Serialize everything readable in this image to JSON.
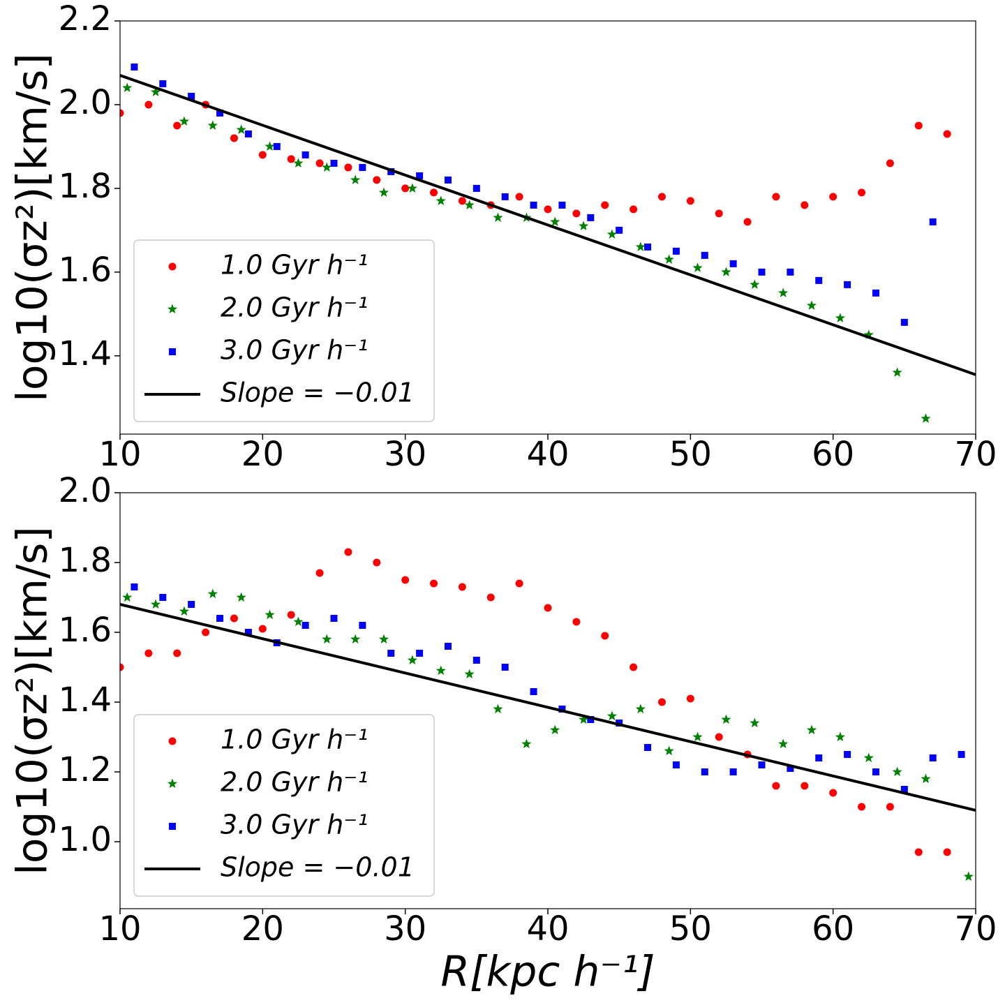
{
  "chart_data": [
    {
      "type": "scatter",
      "ylabel": "log10(σz²)[km/s]",
      "xlim": [
        10,
        70
      ],
      "xticks": [
        10,
        20,
        30,
        40,
        50,
        60,
        70
      ],
      "ylim": [
        1.213,
        2.2
      ],
      "yticks": [
        1.4,
        1.6,
        1.8,
        {
          "value": 2,
          "label": "2.0"
        },
        2.2
      ],
      "legend": "lower left",
      "series": [
        {
          "name": "1.0 Gyr h⁻¹",
          "color": "#ff0000",
          "marker": "o",
          "x": [
            10,
            12,
            14,
            16,
            18,
            20,
            22,
            24,
            26,
            28,
            30,
            32,
            34,
            36,
            38,
            40,
            42,
            44,
            46,
            48,
            50,
            52,
            54,
            56,
            58,
            60,
            62,
            64,
            66,
            68
          ],
          "values": [
            1.98,
            2.0,
            1.95,
            2.0,
            1.92,
            1.88,
            1.87,
            1.86,
            1.85,
            1.82,
            1.8,
            1.79,
            1.77,
            1.76,
            1.78,
            1.75,
            1.74,
            1.76,
            1.75,
            1.78,
            1.77,
            1.74,
            1.72,
            1.78,
            1.76,
            1.78,
            1.79,
            1.86,
            1.95,
            1.93
          ]
        },
        {
          "name": "2.0 Gyr h⁻¹",
          "color": "#008000",
          "marker": "*",
          "x": [
            10.5,
            12.5,
            14.5,
            16.5,
            18.5,
            20.5,
            22.5,
            24.5,
            26.5,
            28.5,
            30.5,
            32.5,
            34.5,
            36.5,
            38.5,
            40.5,
            42.5,
            44.5,
            46.5,
            48.5,
            50.5,
            52.5,
            54.5,
            56.5,
            58.5,
            60.5,
            62.5,
            64.5,
            66.5
          ],
          "values": [
            2.04,
            2.03,
            1.96,
            1.95,
            1.94,
            1.9,
            1.86,
            1.85,
            1.82,
            1.79,
            1.8,
            1.77,
            1.76,
            1.73,
            1.73,
            1.72,
            1.71,
            1.69,
            1.66,
            1.63,
            1.61,
            1.6,
            1.57,
            1.55,
            1.52,
            1.49,
            1.45,
            1.36,
            1.25
          ]
        },
        {
          "name": "3.0 Gyr h⁻¹",
          "color": "#0000ff",
          "marker": "s",
          "x": [
            11,
            13,
            15,
            17,
            19,
            21,
            23,
            25,
            27,
            29,
            31,
            33,
            35,
            37,
            39,
            41,
            43,
            45,
            47,
            49,
            51,
            53,
            55,
            57,
            59,
            61,
            63,
            65,
            67
          ],
          "values": [
            2.09,
            2.05,
            2.02,
            1.98,
            1.93,
            1.9,
            1.88,
            1.86,
            1.85,
            1.84,
            1.83,
            1.82,
            1.8,
            1.78,
            1.76,
            1.76,
            1.73,
            1.7,
            1.66,
            1.65,
            1.64,
            1.62,
            1.6,
            1.6,
            1.58,
            1.57,
            1.55,
            1.48,
            1.72
          ]
        },
        {
          "name": "Slope = −0.01",
          "color": "#000000",
          "marker": "line",
          "x": [
            10,
            70
          ],
          "values": [
            2.07,
            1.355
          ]
        }
      ]
    },
    {
      "type": "scatter",
      "ylabel": "log10(σz²)[km/s]",
      "xlabel": "R[kpc h⁻¹]",
      "xlim": [
        10,
        70
      ],
      "xticks": [
        10,
        20,
        30,
        40,
        50,
        60,
        70
      ],
      "ylim": [
        0.808,
        2.0
      ],
      "yticks": [
        {
          "value": 1,
          "label": "1.0"
        },
        1.2,
        1.4,
        1.6,
        1.8,
        {
          "value": 2,
          "label": "2.0"
        }
      ],
      "legend": "lower left",
      "series": [
        {
          "name": "1.0 Gyr h⁻¹",
          "color": "#ff0000",
          "marker": "o",
          "x": [
            10,
            12,
            14,
            16,
            18,
            20,
            22,
            24,
            26,
            28,
            30,
            32,
            34,
            36,
            38,
            40,
            42,
            44,
            46,
            48,
            50,
            52,
            54,
            56,
            58,
            60,
            62,
            64,
            66,
            68
          ],
          "values": [
            1.5,
            1.54,
            1.54,
            1.6,
            1.64,
            1.61,
            1.65,
            1.77,
            1.83,
            1.8,
            1.75,
            1.74,
            1.73,
            1.7,
            1.74,
            1.67,
            1.63,
            1.59,
            1.5,
            1.4,
            1.41,
            1.3,
            1.25,
            1.16,
            1.16,
            1.14,
            1.1,
            1.1,
            0.97,
            0.97
          ]
        },
        {
          "name": "2.0 Gyr h⁻¹",
          "color": "#008000",
          "marker": "*",
          "x": [
            10.5,
            12.5,
            14.5,
            16.5,
            18.5,
            20.5,
            22.5,
            24.5,
            26.5,
            28.5,
            30.5,
            32.5,
            34.5,
            36.5,
            38.5,
            40.5,
            42.5,
            44.5,
            46.5,
            48.5,
            50.5,
            52.5,
            54.5,
            56.5,
            58.5,
            60.5,
            62.5,
            64.5,
            66.5,
            69.5
          ],
          "values": [
            1.7,
            1.68,
            1.66,
            1.71,
            1.7,
            1.65,
            1.63,
            1.58,
            1.58,
            1.58,
            1.52,
            1.49,
            1.48,
            1.38,
            1.28,
            1.32,
            1.35,
            1.36,
            1.38,
            1.26,
            1.3,
            1.35,
            1.34,
            1.28,
            1.32,
            1.3,
            1.24,
            1.2,
            1.18,
            0.9
          ]
        },
        {
          "name": "3.0 Gyr h⁻¹",
          "color": "#0000ff",
          "marker": "s",
          "x": [
            11,
            13,
            15,
            17,
            19,
            21,
            23,
            25,
            27,
            29,
            31,
            33,
            35,
            37,
            39,
            41,
            43,
            45,
            47,
            49,
            51,
            53,
            55,
            57,
            59,
            61,
            63,
            65,
            67,
            69
          ],
          "values": [
            1.73,
            1.7,
            1.68,
            1.64,
            1.6,
            1.57,
            1.62,
            1.64,
            1.62,
            1.54,
            1.54,
            1.56,
            1.52,
            1.5,
            1.43,
            1.38,
            1.35,
            1.34,
            1.27,
            1.22,
            1.2,
            1.2,
            1.22,
            1.21,
            1.24,
            1.25,
            1.2,
            1.15,
            1.24,
            1.25
          ]
        },
        {
          "name": "Slope = −0.01",
          "color": "#000000",
          "marker": "line",
          "x": [
            10,
            70
          ],
          "values": [
            1.68,
            1.09
          ]
        }
      ]
    }
  ]
}
